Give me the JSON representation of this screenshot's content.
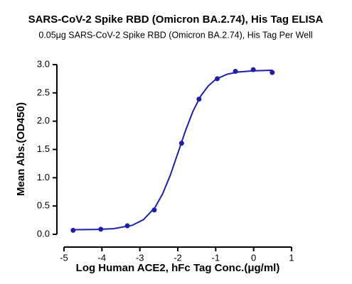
{
  "chart_data": {
    "type": "scatter",
    "title": "SARS-CoV-2 Spike RBD (Omicron BA.2.74), His Tag ELISA",
    "subtitle": "0.05μg SARS-CoV-2 Spike RBD (Omicron BA.2.74), His Tag Per Well",
    "x_label": "Log Human ACE2, hFc Tag Conc.(μg/ml)",
    "y_label": "Mean Abs.(OD450)",
    "xlim": [
      -5,
      1
    ],
    "xticks": [
      -5,
      -4,
      -3,
      -2,
      -1,
      0,
      1
    ],
    "ylim": [
      0,
      3
    ],
    "yticks": [
      {
        "value": 0,
        "label": "0.0"
      },
      {
        "value": 0.5,
        "label": "0.5"
      },
      {
        "value": 1,
        "label": "1.0"
      },
      {
        "value": 1.5,
        "label": "1.5"
      },
      {
        "value": 2,
        "label": "2.0"
      },
      {
        "value": 2.5,
        "label": "2.5"
      },
      {
        "value": 3,
        "label": "3.0"
      }
    ],
    "series": [
      {
        "color": "#1f1fa8",
        "x": [
          -4.76,
          -4.03,
          -3.33,
          -2.62,
          -1.9,
          -1.44,
          -0.96,
          -0.48,
          -0.01,
          0.49
        ],
        "values": [
          0.07,
          0.09,
          0.15,
          0.43,
          1.61,
          2.39,
          2.75,
          2.88,
          2.91,
          2.86
        ]
      },
      {
        "color": "#1f1fa8",
        "x": [
          -4.7,
          -4.2,
          -3.7,
          -3.2,
          -2.9,
          -2.6,
          -2.4,
          -2.2,
          -2.0,
          -1.8,
          -1.6,
          -1.4,
          -1.2,
          -1.0,
          -0.7,
          -0.4,
          0,
          0.5
        ],
        "values": [
          0.081,
          0.085,
          0.099,
          0.159,
          0.262,
          0.476,
          0.715,
          1.04,
          1.43,
          1.825,
          2.175,
          2.44,
          2.62,
          2.74,
          2.83,
          2.87,
          2.89,
          2.9
        ]
      }
    ]
  }
}
